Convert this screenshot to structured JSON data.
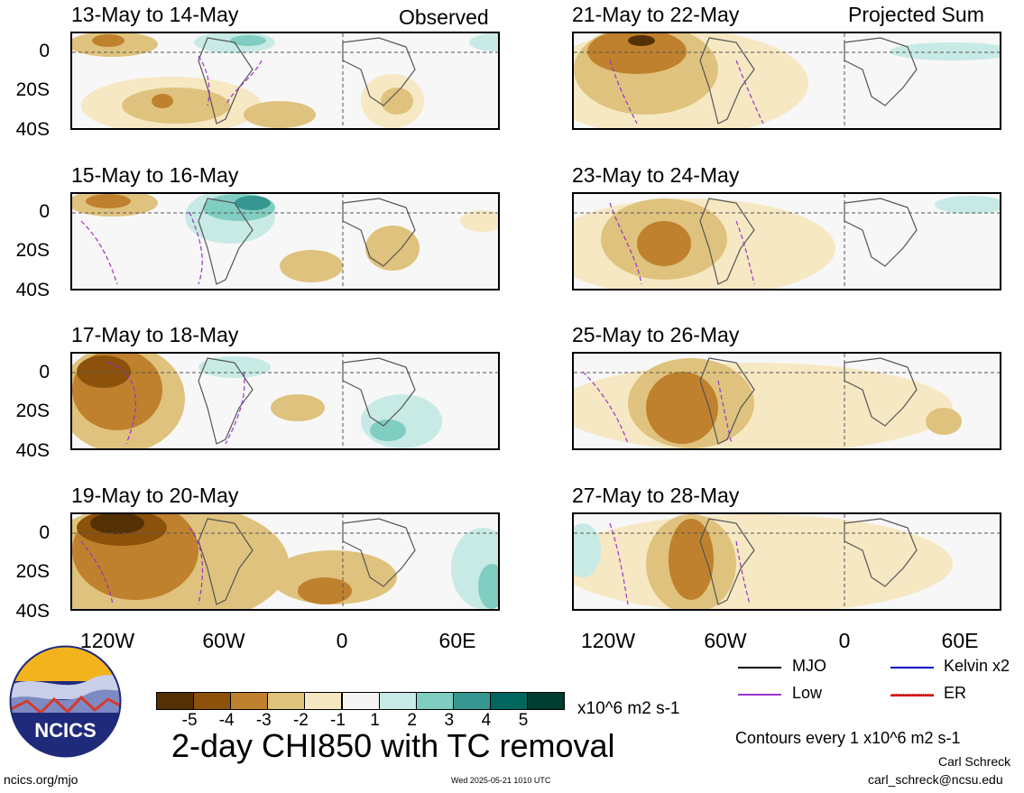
{
  "header": {
    "observed_label": "Observed",
    "projected_label": "Projected Sum"
  },
  "panels": {
    "left": [
      "13-May to 14-May",
      "15-May to 16-May",
      "17-May to 18-May",
      "19-May to 20-May"
    ],
    "right": [
      "21-May to 22-May",
      "23-May to 24-May",
      "25-May to 26-May",
      "27-May to 28-May"
    ]
  },
  "axes": {
    "lat_labels": [
      "0",
      "20S",
      "40S"
    ],
    "lon_labels": [
      "120W",
      "60W",
      "0",
      "60E"
    ]
  },
  "colorbar": {
    "colors": [
      "#543005",
      "#8c510a",
      "#bf812d",
      "#dfc27d",
      "#f6e8c3",
      "#f5f5f5",
      "#c7eae5",
      "#80cdc1",
      "#35978f",
      "#01665e",
      "#003c30"
    ],
    "labels": [
      "-5",
      "-4",
      "-3",
      "-2",
      "-1",
      "1",
      "2",
      "3",
      "4",
      "5"
    ],
    "units": "x10^6 m2 s-1"
  },
  "legend": {
    "items": [
      {
        "label": "MJO",
        "color": "#000000"
      },
      {
        "label": "Kelvin x2",
        "color": "#0000cc"
      },
      {
        "label": "Low",
        "color": "#9933cc"
      },
      {
        "label": "ER",
        "color": "#cc0000"
      }
    ],
    "contours_note": "Contours every 1 x10^6 m2 s-1"
  },
  "footer": {
    "title": "2-day CHI850 with TC removal",
    "logo_text": "NCICS",
    "url": "ncics.org/mjo",
    "timestamp": "Wed 2025-05-21 1010 UTC",
    "author": "Carl Schreck",
    "email": "carl_schreck@ncsu.edu"
  }
}
